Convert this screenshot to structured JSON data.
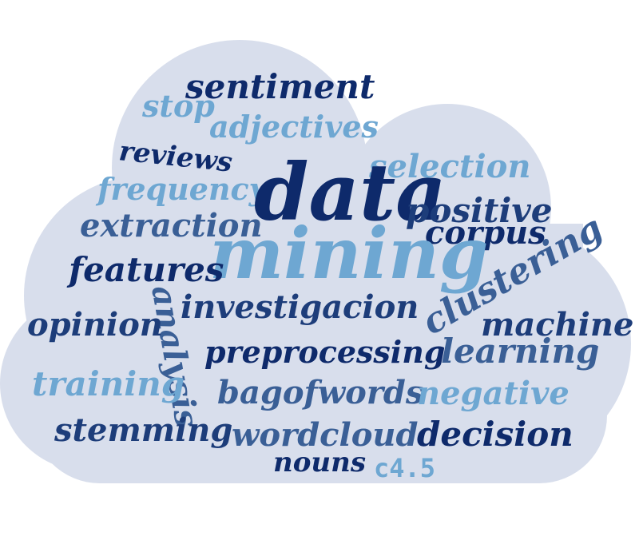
{
  "colors": {
    "cloud": "#d8deec",
    "navy": "#0e2a6b",
    "dark_blue": "#1d3d7a",
    "mid_blue": "#3a5f96",
    "light_blue": "#6ea7d2",
    "background": "#ffffff"
  },
  "words": {
    "data": "data",
    "mining": "mining",
    "sentiment": "sentiment",
    "stop": "stop",
    "adjectives": "adjectives",
    "reviews": "reviews",
    "selection": "selection",
    "frequency": "frequency",
    "positive": "positive",
    "extraction": "extraction",
    "corpus": "corpus",
    "features": "features",
    "clustering": "clustering",
    "analysis": "analysis",
    "investigacion": "investigacion",
    "opinion": "opinion",
    "machine": "machine",
    "preprocessing": "preprocessing",
    "learning": "learning",
    "training": "training",
    "bagofwords": "bagofwords",
    "negative": "negative",
    "stemming": "stemming",
    "wordcloud": "wordcloud",
    "decision": "decision",
    "nouns": "nouns",
    "c45": "c4.5"
  }
}
